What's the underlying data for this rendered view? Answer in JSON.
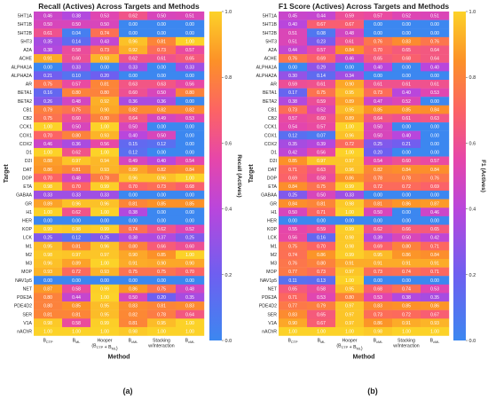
{
  "chart_data": [
    {
      "type": "heatmap",
      "title": "Recall (Actives) Across Targets and Methods",
      "xlabel": "Method",
      "ylabel": "Target",
      "colorbar_label": "Recall (Actives)",
      "panel_label": "(a)",
      "colorbar_ticks": [
        "0.0",
        "0.2",
        "0.4",
        "0.6",
        "0.8",
        "1.0"
      ],
      "range": [
        0,
        1
      ],
      "columns": [
        "B_CTP",
        "B_ML",
        "Hooper (B_CTP + B_ML)",
        "B_cML",
        "Stacking w/Interaction",
        "B_cML"
      ],
      "rows": [
        "5HT1A",
        "5HT1B",
        "5HT2B",
        "5HT3",
        "A2A",
        "ACHE",
        "ALPHA1A",
        "ALPHA2A",
        "AR",
        "BETA1",
        "BETA2",
        "CB1",
        "CB2",
        "CCK1",
        "COX1",
        "COX2",
        "D1",
        "D2I",
        "DAT",
        "DOP",
        "ETA",
        "GABAA",
        "GR",
        "H1",
        "HER",
        "KOP",
        "LCK",
        "M1",
        "M2",
        "M3",
        "MOP",
        "NAV1p5",
        "NET",
        "PDE3A",
        "PDE4D2",
        "SER",
        "V1A",
        "nAChR"
      ],
      "values": [
        [
          0.46,
          0.38,
          0.53,
          0.62,
          0.5,
          0.51
        ],
        [
          0.5,
          0.5,
          0.5,
          0.0,
          0.0,
          0.0
        ],
        [
          0.61,
          0.04,
          0.74,
          0.0,
          0.0,
          0.0
        ],
        [
          0.35,
          0.14,
          0.43,
          0.96,
          0.81,
          1.0
        ],
        [
          0.38,
          0.58,
          0.73,
          0.92,
          0.73,
          0.57
        ],
        [
          0.91,
          0.6,
          0.93,
          0.62,
          0.61,
          0.65
        ],
        [
          0.0,
          0.33,
          0.0,
          0.33,
          0.0,
          0.33
        ],
        [
          0.21,
          0.1,
          0.2,
          0.0,
          0.0,
          0.0
        ],
        [
          0.75,
          0.57,
          0.81,
          0.63,
          0.63,
          0.56
        ],
        [
          0.16,
          0.8,
          0.8,
          0.6,
          0.5,
          0.8
        ],
        [
          0.26,
          0.48,
          0.92,
          0.36,
          0.36,
          0.0
        ],
        [
          0.79,
          0.75,
          0.9,
          0.82,
          0.82,
          0.82
        ],
        [
          0.75,
          0.6,
          0.8,
          0.64,
          0.49,
          0.53
        ],
        [
          1.0,
          0.5,
          1.0,
          0.5,
          0.0,
          0.0
        ],
        [
          0.7,
          0.8,
          0.93,
          0.4,
          0.5,
          0.0
        ],
        [
          0.46,
          0.36,
          0.56,
          0.15,
          0.12,
          0.0
        ],
        [
          1.0,
          0.62,
          1.0,
          0.12,
          0.0,
          0.0
        ],
        [
          0.88,
          0.97,
          0.94,
          0.49,
          0.4,
          0.54
        ],
        [
          0.86,
          0.81,
          0.93,
          0.89,
          0.82,
          0.84
        ],
        [
          0.7,
          0.48,
          0.78,
          0.96,
          0.96,
          1.0
        ],
        [
          0.98,
          0.7,
          0.99,
          0.7,
          0.73,
          0.68
        ],
        [
          0.33,
          0.33,
          0.33,
          0.0,
          0.0,
          0.0
        ],
        [
          0.89,
          0.96,
          0.96,
          0.81,
          0.85,
          0.85
        ],
        [
          1.0,
          0.62,
          1.0,
          0.38,
          0.0,
          0.0
        ],
        [
          0.0,
          0.0,
          0.0,
          0.0,
          0.0,
          0.0
        ],
        [
          0.99,
          0.98,
          0.99,
          0.74,
          0.62,
          0.52
        ],
        [
          0.25,
          0.12,
          0.25,
          0.38,
          0.37,
          0.25
        ],
        [
          0.95,
          0.81,
          0.96,
          0.8,
          0.66,
          0.6
        ],
        [
          0.98,
          0.97,
          0.97,
          0.9,
          0.85,
          1.0
        ],
        [
          0.96,
          0.89,
          1.0,
          0.91,
          0.9,
          0.9
        ],
        [
          0.93,
          0.72,
          0.93,
          0.75,
          0.75,
          0.7
        ],
        [
          0.0,
          0.0,
          0.0,
          0.0,
          0.0,
          0.0
        ],
        [
          0.87,
          0.58,
          0.99,
          0.86,
          0.75,
          0.48
        ],
        [
          0.8,
          0.44,
          1.0,
          0.5,
          0.2,
          0.35
        ],
        [
          0.8,
          0.85,
          0.95,
          0.83,
          0.81,
          0.83
        ],
        [
          0.81,
          0.81,
          0.95,
          0.82,
          0.78,
          0.64
        ],
        [
          0.98,
          0.58,
          0.99,
          0.81,
          0.95,
          1.0
        ],
        [
          1.0,
          1.0,
          1.0,
          0.98,
          1.0,
          1.0
        ]
      ]
    },
    {
      "type": "heatmap",
      "title": "F1 Score (Actives) Across Targets and Methods",
      "xlabel": "Method",
      "ylabel": "Target",
      "colorbar_label": "F1 (Actives)",
      "panel_label": "(b)",
      "colorbar_ticks": [
        "0.0",
        "0.2",
        "0.4",
        "0.6",
        "0.8",
        "1.0"
      ],
      "range": [
        0,
        1
      ],
      "columns": [
        "B_CTP",
        "B_ML",
        "Hooper (B_CTP + B_ML)",
        "B_cML",
        "Stacking w/Interaction",
        "B_cML"
      ],
      "rows": [
        "5HT1A",
        "5HT1B",
        "5HT2B",
        "5HT3",
        "A2A",
        "ACHE",
        "ALPHA1A",
        "ALPHA2A",
        "AR",
        "BETA1",
        "BETA2",
        "CB1",
        "CB2",
        "CCK1",
        "COX1",
        "COX2",
        "D1",
        "D2I",
        "DAT",
        "DOP",
        "ETA",
        "GABAA",
        "GR",
        "H1",
        "HER",
        "KOP",
        "LCK",
        "M1",
        "M2",
        "M3",
        "MOP",
        "NAV1p5",
        "NET",
        "PDE3A",
        "PDE4D2",
        "SER",
        "V1A",
        "nAChR"
      ],
      "values": [
        [
          0.45,
          0.44,
          0.59,
          0.57,
          0.52,
          0.51
        ],
        [
          0.4,
          0.67,
          0.67,
          0.0,
          0.0,
          0.0
        ],
        [
          0.51,
          0.08,
          0.48,
          0.0,
          0.0,
          0.0
        ],
        [
          0.51,
          0.23,
          0.61,
          0.76,
          0.83,
          0.76
        ],
        [
          0.44,
          0.57,
          0.84,
          0.7,
          0.65,
          0.64
        ],
        [
          0.76,
          0.69,
          0.46,
          0.65,
          0.68,
          0.64
        ],
        [
          0.0,
          0.29,
          0.0,
          0.4,
          0.0,
          0.4
        ],
        [
          0.3,
          0.14,
          0.34,
          0.0,
          0.0,
          0.0
        ],
        [
          0.59,
          0.61,
          0.9,
          0.61,
          0.61,
          0.61
        ],
        [
          0.17,
          0.75,
          0.95,
          0.73,
          0.4,
          0.53
        ],
        [
          0.38,
          0.59,
          0.89,
          0.47,
          0.52,
          0.0
        ],
        [
          0.73,
          0.52,
          0.95,
          0.85,
          0.85,
          0.84
        ],
        [
          0.57,
          0.6,
          0.89,
          0.64,
          0.61,
          0.63
        ],
        [
          0.54,
          0.57,
          1.0,
          0.5,
          0.0,
          0.0
        ],
        [
          0.12,
          0.07,
          0.96,
          0.5,
          0.4,
          0.0
        ],
        [
          0.35,
          0.39,
          0.72,
          0.25,
          0.21,
          0.0
        ],
        [
          0.42,
          0.56,
          1.0,
          0.2,
          0.0,
          0.0
        ],
        [
          0.85,
          0.97,
          0.97,
          0.54,
          0.6,
          0.57
        ],
        [
          0.71,
          0.63,
          0.96,
          0.82,
          0.84,
          0.84
        ],
        [
          0.69,
          0.58,
          0.86,
          0.78,
          0.78,
          0.76
        ],
        [
          0.84,
          0.75,
          0.99,
          0.72,
          0.72,
          0.69
        ],
        [
          0.25,
          0.5,
          0.33,
          0.0,
          0.0,
          0.0
        ],
        [
          0.84,
          0.81,
          0.98,
          0.81,
          0.86,
          0.87
        ],
        [
          0.5,
          0.71,
          1.0,
          0.5,
          0.0,
          0.46
        ],
        [
          0.0,
          0.0,
          0.0,
          0.0,
          0.0,
          0.0
        ],
        [
          0.55,
          0.59,
          0.99,
          0.62,
          0.66,
          0.65
        ],
        [
          0.56,
          0.16,
          0.98,
          0.39,
          0.5,
          0.42
        ],
        [
          0.75,
          0.7,
          0.98,
          0.69,
          0.8,
          0.71
        ],
        [
          0.74,
          0.86,
          0.99,
          0.95,
          0.86,
          0.84
        ],
        [
          0.76,
          0.8,
          0.91,
          0.91,
          0.91,
          0.91
        ],
        [
          0.77,
          0.73,
          0.97,
          0.73,
          0.74,
          0.71
        ],
        [
          0.11,
          0.13,
          1.0,
          0.0,
          0.0,
          0.0
        ],
        [
          0.65,
          0.58,
          0.95,
          0.68,
          0.74,
          0.53
        ],
        [
          0.71,
          0.53,
          0.8,
          0.53,
          0.38,
          0.35
        ],
        [
          0.77,
          0.79,
          0.97,
          0.83,
          0.85,
          0.86
        ],
        [
          0.83,
          0.65,
          0.97,
          0.73,
          0.72,
          0.67
        ],
        [
          0.9,
          0.67,
          0.97,
          0.86,
          0.91,
          0.93
        ],
        [
          1.0,
          1.0,
          1.0,
          0.98,
          1.0,
          1.0
        ]
      ]
    }
  ]
}
